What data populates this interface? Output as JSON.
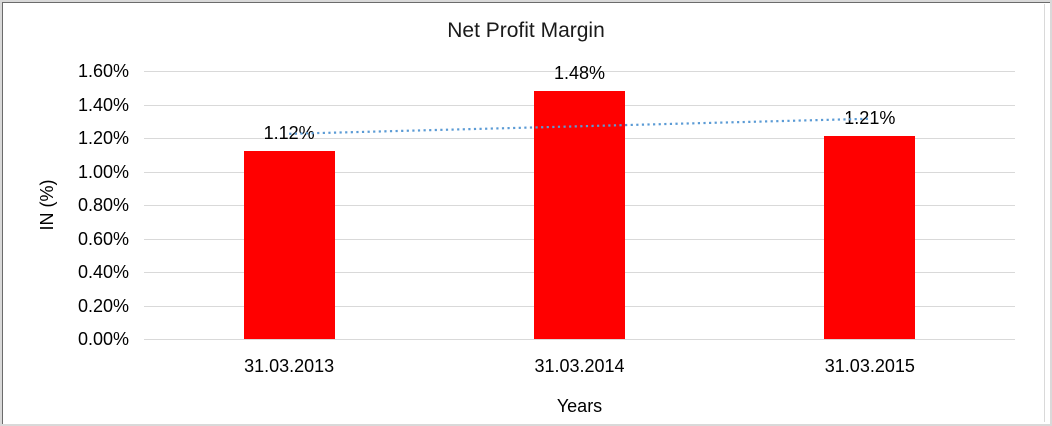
{
  "window": {
    "background": "#ffffff",
    "frame_outer_color": "#d9d9d9",
    "frame_inner_color": "#6b6b6b"
  },
  "chart_data": {
    "type": "bar",
    "title": "Net Profit Margin",
    "xlabel": "Years",
    "ylabel": "IN (%)",
    "categories": [
      "31.03.2013",
      "31.03.2014",
      "31.03.2015"
    ],
    "values": [
      1.12,
      1.48,
      1.21
    ],
    "data_labels": [
      "1.12%",
      "1.48%",
      "1.21%"
    ],
    "y_ticks": [
      "0.00%",
      "0.20%",
      "0.40%",
      "0.60%",
      "0.80%",
      "1.00%",
      "1.20%",
      "1.40%",
      "1.60%"
    ],
    "ylim": [
      0,
      1.6
    ],
    "grid": true,
    "legend": "none",
    "bar_color": "#ff0000",
    "gridline_color": "#d9d9d9",
    "text_color": "#000000",
    "trendline": {
      "type": "linear",
      "style": "dotted",
      "color": "#5b9bd5",
      "endpoint_values": [
        1.225,
        1.315
      ]
    }
  }
}
